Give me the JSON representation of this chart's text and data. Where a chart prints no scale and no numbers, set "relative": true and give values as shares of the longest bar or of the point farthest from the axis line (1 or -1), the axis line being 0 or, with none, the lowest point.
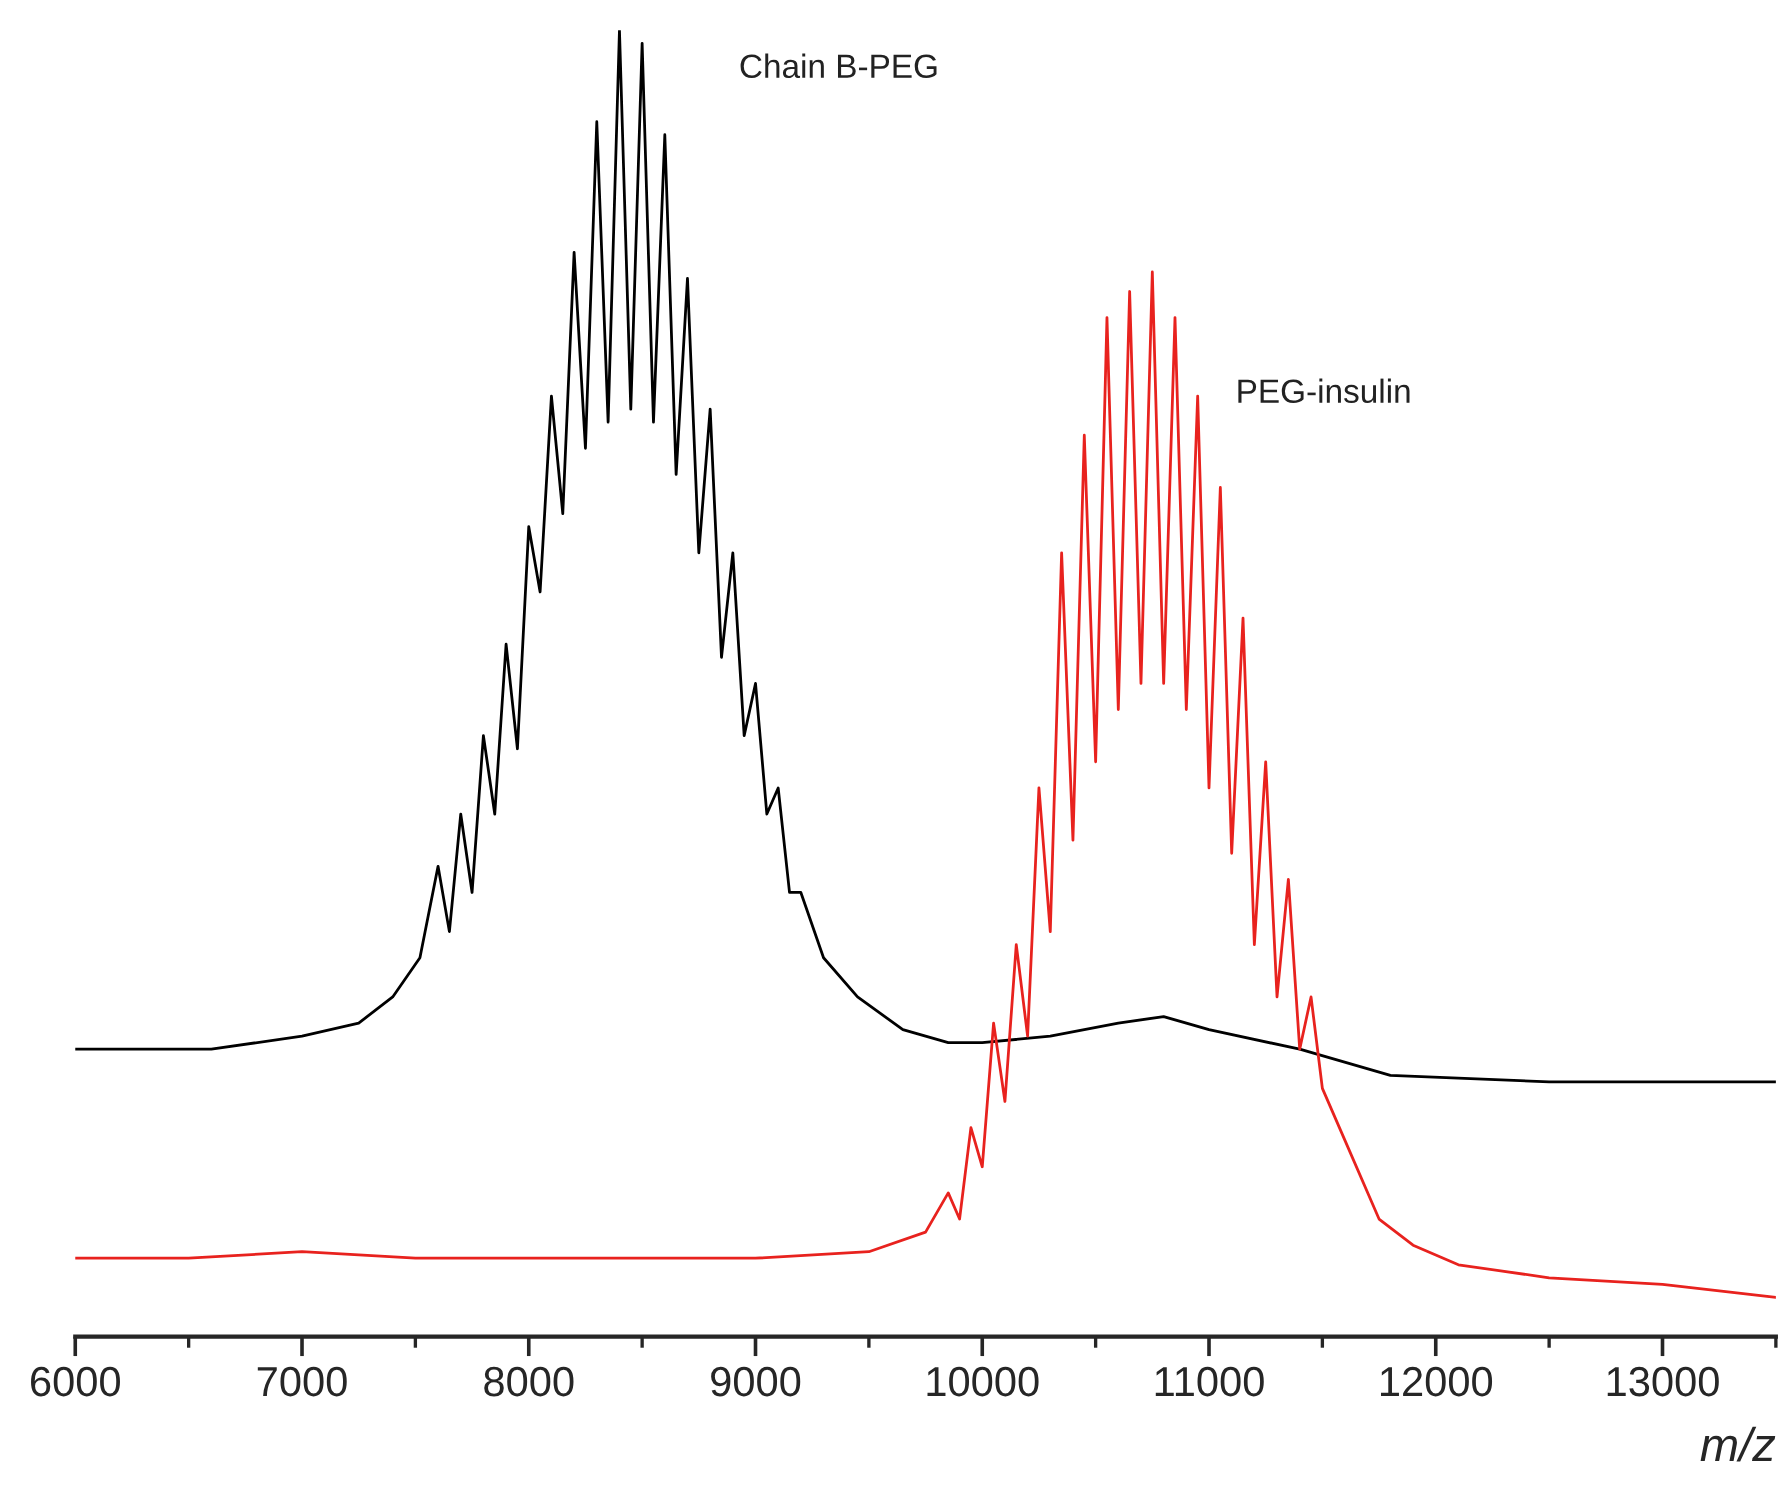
{
  "chart_data": {
    "type": "line",
    "relative": true,
    "xlabel": "m/z",
    "xlim": [
      6000,
      13500
    ],
    "xticks": [
      6000,
      7000,
      8000,
      9000,
      10000,
      11000,
      12000,
      13000
    ],
    "tick_labels": "x",
    "grid": false,
    "legend": false,
    "series": [
      {
        "name": "Chain B-PEG",
        "color": "#000000",
        "x": [
          6000,
          6300,
          6600,
          7000,
          7250,
          7400,
          7520,
          7600,
          7650,
          7700,
          7750,
          7800,
          7850,
          7900,
          7950,
          8000,
          8050,
          8100,
          8150,
          8200,
          8250,
          8300,
          8350,
          8400,
          8450,
          8500,
          8550,
          8600,
          8650,
          8700,
          8750,
          8800,
          8850,
          8900,
          8950,
          9000,
          9050,
          9100,
          9150,
          9200,
          9300,
          9450,
          9650,
          9850,
          10000,
          10300,
          10600,
          10800,
          11000,
          11400,
          11800,
          12500,
          13000,
          13500
        ],
        "values": [
          0.22,
          0.22,
          0.22,
          0.23,
          0.24,
          0.26,
          0.29,
          0.36,
          0.31,
          0.4,
          0.34,
          0.46,
          0.4,
          0.53,
          0.45,
          0.62,
          0.57,
          0.72,
          0.63,
          0.83,
          0.68,
          0.93,
          0.7,
          1.0,
          0.71,
          0.99,
          0.7,
          0.92,
          0.66,
          0.81,
          0.6,
          0.71,
          0.52,
          0.6,
          0.46,
          0.5,
          0.4,
          0.42,
          0.34,
          0.34,
          0.29,
          0.26,
          0.235,
          0.225,
          0.225,
          0.23,
          0.24,
          0.245,
          0.235,
          0.22,
          0.2,
          0.195,
          0.195,
          0.195
        ]
      },
      {
        "name": "PEG-insulin",
        "color": "#e8221e",
        "x": [
          6000,
          6500,
          7000,
          7500,
          8000,
          8500,
          9000,
          9500,
          9750,
          9850,
          9900,
          9950,
          10000,
          10050,
          10100,
          10150,
          10200,
          10250,
          10300,
          10350,
          10400,
          10450,
          10500,
          10550,
          10600,
          10650,
          10700,
          10750,
          10800,
          10850,
          10900,
          10950,
          11000,
          11050,
          11100,
          11150,
          11200,
          11250,
          11300,
          11350,
          11400,
          11450,
          11500,
          11600,
          11750,
          11900,
          12100,
          12500,
          13000,
          13500
        ],
        "values": [
          0.06,
          0.06,
          0.065,
          0.06,
          0.06,
          0.06,
          0.06,
          0.065,
          0.08,
          0.11,
          0.09,
          0.16,
          0.13,
          0.24,
          0.18,
          0.3,
          0.23,
          0.42,
          0.31,
          0.6,
          0.38,
          0.69,
          0.44,
          0.78,
          0.48,
          0.8,
          0.5,
          0.815,
          0.5,
          0.78,
          0.48,
          0.72,
          0.42,
          0.65,
          0.37,
          0.55,
          0.3,
          0.44,
          0.26,
          0.35,
          0.22,
          0.26,
          0.19,
          0.15,
          0.09,
          0.07,
          0.055,
          0.045,
          0.04,
          0.03
        ]
      }
    ]
  }
}
